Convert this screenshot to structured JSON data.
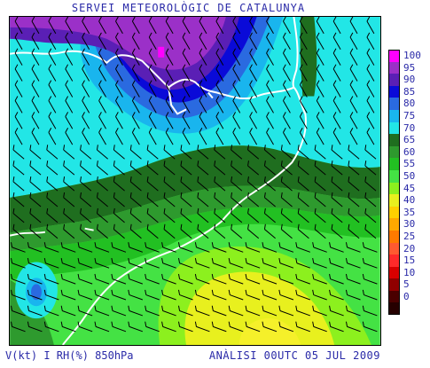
{
  "header": {
    "title": "SERVEI METEOROLÒGIC DE CATALUNYA"
  },
  "legend": {
    "entries": [
      {
        "label": "100",
        "color": "#ff00ff"
      },
      {
        "label": "95",
        "color": "#9b30c8"
      },
      {
        "label": "90",
        "color": "#5a1fb5"
      },
      {
        "label": "85",
        "color": "#0a0ad8"
      },
      {
        "label": "80",
        "color": "#2a6ae0"
      },
      {
        "label": "75",
        "color": "#19b5ee"
      },
      {
        "label": "70",
        "color": "#22e6e6"
      },
      {
        "label": "65",
        "color": "#1f6e1f"
      },
      {
        "label": "60",
        "color": "#2e9a2e"
      },
      {
        "label": "55",
        "color": "#22c022"
      },
      {
        "label": "50",
        "color": "#44e244"
      },
      {
        "label": "45",
        "color": "#8cf01e"
      },
      {
        "label": "40",
        "color": "#e8f01e"
      },
      {
        "label": "35",
        "color": "#ffd000"
      },
      {
        "label": "30",
        "color": "#ffa800"
      },
      {
        "label": "25",
        "color": "#ff7a00"
      },
      {
        "label": "20",
        "color": "#ff5a30"
      },
      {
        "label": "15",
        "color": "#ff2a2a"
      },
      {
        "label": "10",
        "color": "#d80000"
      },
      {
        "label": "5",
        "color": "#900000"
      },
      {
        "label": "0",
        "color": "#4a0000"
      },
      {
        "label": "",
        "color": "#260000"
      }
    ]
  },
  "footer": {
    "left": "V(kt) I RH(%) 850hPa",
    "right": "ANÀLISI 00UTC 05 JUL 2009"
  },
  "colors": {
    "text": "#2a2aa8",
    "coastline": "#ffffff",
    "barbs": "#000000"
  }
}
